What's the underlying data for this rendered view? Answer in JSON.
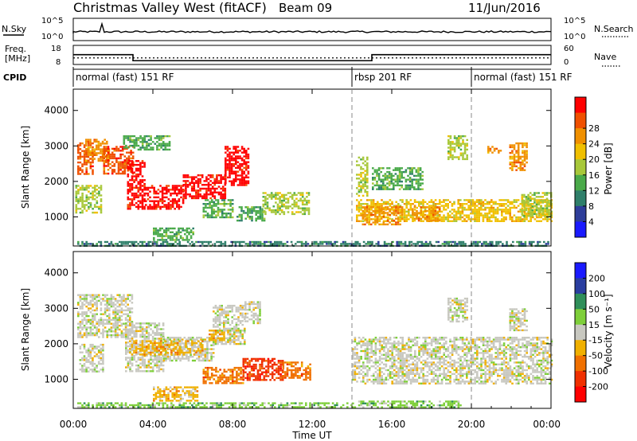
{
  "header": {
    "title": "Christmas Valley West (fitACF)",
    "beam": "Beam 09",
    "date": "11/Jun/2016"
  },
  "strips": {
    "nsky": {
      "label": "N.Sky",
      "right_label": "N.Search",
      "tick_top": "10^5",
      "tick_bottom": "10^0",
      "right_tick_top": "10^5",
      "right_tick_bottom": "10^0"
    },
    "freq": {
      "label_line1": "Freq.",
      "label_line2": "[MHz]",
      "right_label": "Nave",
      "left_ticks": [
        "18",
        "8"
      ],
      "right_ticks": [
        "60",
        "0"
      ]
    },
    "cpid": {
      "label": "CPID",
      "segments": [
        {
          "name": "normal (fast) 151 RF",
          "start_h": 0,
          "end_h": 14
        },
        {
          "name": "rbsp 201 RF",
          "start_h": 14,
          "end_h": 20
        },
        {
          "name": "normal (fast) 151 RF",
          "start_h": 20,
          "end_h": 24
        }
      ]
    }
  },
  "panels": {
    "power": {
      "ylabel": "Slant Range [km]",
      "colorbar_label": "Power [dB]",
      "colorbar_ticks": [
        "4",
        "8",
        "12",
        "16",
        "20",
        "24",
        "28"
      ],
      "colors": [
        "#1a1aff",
        "#2e3e9a",
        "#2f7f6a",
        "#4aaa4a",
        "#a8c83a",
        "#f0c000",
        "#f09000",
        "#f05000",
        "#ff0000"
      ]
    },
    "velocity": {
      "ylabel": "Slant Range [km]",
      "colorbar_label": "Velocity [m s⁻¹]",
      "colorbar_ticks": [
        "200",
        "100",
        "50",
        "15",
        "-15",
        "-50",
        "-100",
        "-200"
      ],
      "colors": [
        "#1a1aff",
        "#2a3ea0",
        "#2f8f5a",
        "#7ecf3a",
        "#c8c8c0",
        "#f0b000",
        "#f07000",
        "#f03000",
        "#ff0000"
      ]
    }
  },
  "xaxis": {
    "label": "Time UT",
    "ticks": [
      "00:00",
      "04:00",
      "08:00",
      "12:00",
      "16:00",
      "20:00",
      "00:00"
    ]
  },
  "chart_data": {
    "type": "heatmap",
    "x_range_hours": [
      0,
      24
    ],
    "y_range_km": [
      180,
      4600
    ],
    "yticks": [
      1000,
      2000,
      3000,
      4000
    ],
    "cpid_boundaries_h": [
      14,
      20
    ],
    "freq_mhz": [
      {
        "start_h": 0,
        "end_h": 3,
        "value": 14.5
      },
      {
        "start_h": 3,
        "end_h": 15,
        "value": 10.5
      },
      {
        "start_h": 15,
        "end_h": 24,
        "value": 14.5
      }
    ],
    "nave_level": 26,
    "power_regions": [
      {
        "t0": 0.2,
        "t1": 1.0,
        "r0": 2200,
        "r1": 3100,
        "level": 7
      },
      {
        "t0": 0.6,
        "t1": 1.8,
        "r0": 2600,
        "r1": 3200,
        "level": 6
      },
      {
        "t0": 1.5,
        "t1": 3.0,
        "r0": 2200,
        "r1": 3000,
        "level": 7
      },
      {
        "t0": 2.7,
        "t1": 3.6,
        "r0": 1200,
        "r1": 2600,
        "level": 8
      },
      {
        "t0": 3.6,
        "t1": 5.5,
        "r0": 1200,
        "r1": 1900,
        "level": 8
      },
      {
        "t0": 5.5,
        "t1": 7.6,
        "r0": 1500,
        "r1": 2200,
        "level": 8
      },
      {
        "t0": 7.6,
        "t1": 8.8,
        "r0": 1900,
        "r1": 3000,
        "level": 8
      },
      {
        "t0": 0.1,
        "t1": 1.4,
        "r0": 1100,
        "r1": 1900,
        "level": 4
      },
      {
        "t0": 2.5,
        "t1": 4.8,
        "r0": 2900,
        "r1": 3300,
        "level": 3
      },
      {
        "t0": 6.5,
        "t1": 8.0,
        "r0": 1000,
        "r1": 1500,
        "level": 3
      },
      {
        "t0": 8.2,
        "t1": 9.6,
        "r0": 900,
        "r1": 1300,
        "level": 3
      },
      {
        "t0": 9.5,
        "t1": 11.8,
        "r0": 1100,
        "r1": 1700,
        "level": 4
      },
      {
        "t0": 4.0,
        "t1": 6.0,
        "r0": 350,
        "r1": 700,
        "level": 3
      },
      {
        "t0": 0.2,
        "t1": 24.0,
        "r0": 200,
        "r1": 320,
        "level": 2
      },
      {
        "t0": 14.2,
        "t1": 14.8,
        "r0": 1600,
        "r1": 2700,
        "level": 4
      },
      {
        "t0": 14.2,
        "t1": 24.0,
        "r0": 900,
        "r1": 1500,
        "level": 5
      },
      {
        "t0": 14.5,
        "t1": 16.5,
        "r0": 800,
        "r1": 1300,
        "level": 6
      },
      {
        "t0": 17.0,
        "t1": 18.4,
        "r0": 900,
        "r1": 1300,
        "level": 6
      },
      {
        "t0": 15.0,
        "t1": 17.5,
        "r0": 1800,
        "r1": 2400,
        "level": 3
      },
      {
        "t0": 18.8,
        "t1": 19.8,
        "r0": 2600,
        "r1": 3300,
        "level": 4
      },
      {
        "t0": 20.8,
        "t1": 21.5,
        "r0": 2800,
        "r1": 3000,
        "level": 6
      },
      {
        "t0": 21.9,
        "t1": 22.8,
        "r0": 2300,
        "r1": 3100,
        "level": 6
      },
      {
        "t0": 22.5,
        "t1": 24.0,
        "r0": 1000,
        "r1": 1700,
        "level": 4
      }
    ],
    "velocity_regions": [
      {
        "t0": 0.2,
        "t1": 3.0,
        "r0": 2200,
        "r1": 3400,
        "level": 4
      },
      {
        "t0": 0.3,
        "t1": 1.5,
        "r0": 1200,
        "r1": 2000,
        "level": 4
      },
      {
        "t0": 2.6,
        "t1": 4.5,
        "r0": 1200,
        "r1": 2600,
        "level": 4
      },
      {
        "t0": 4.5,
        "t1": 7.0,
        "r0": 1500,
        "r1": 2200,
        "level": 4
      },
      {
        "t0": 7.0,
        "t1": 8.6,
        "r0": 2000,
        "r1": 3100,
        "level": 4
      },
      {
        "t0": 8.6,
        "t1": 9.4,
        "r0": 2600,
        "r1": 3200,
        "level": 4
      },
      {
        "t0": 2.8,
        "t1": 6.5,
        "r0": 1700,
        "r1": 2100,
        "level": 5
      },
      {
        "t0": 6.8,
        "t1": 7.6,
        "r0": 2100,
        "r1": 2400,
        "level": 5
      },
      {
        "t0": 6.5,
        "t1": 8.5,
        "r0": 900,
        "r1": 1350,
        "level": 6
      },
      {
        "t0": 8.5,
        "t1": 10.5,
        "r0": 1000,
        "r1": 1600,
        "level": 7
      },
      {
        "t0": 10.5,
        "t1": 11.9,
        "r0": 1000,
        "r1": 1500,
        "level": 6
      },
      {
        "t0": 4.0,
        "t1": 6.2,
        "r0": 400,
        "r1": 800,
        "level": 5
      },
      {
        "t0": 0.2,
        "t1": 14.0,
        "r0": 190,
        "r1": 350,
        "level": 3
      },
      {
        "t0": 14.0,
        "t1": 19.5,
        "r0": 190,
        "r1": 400,
        "level": 3
      },
      {
        "t0": 14.0,
        "t1": 24.0,
        "r0": 900,
        "r1": 2200,
        "level": 4
      },
      {
        "t0": 18.8,
        "t1": 19.8,
        "r0": 2600,
        "r1": 3300,
        "level": 4
      },
      {
        "t0": 21.9,
        "t1": 22.8,
        "r0": 2400,
        "r1": 3000,
        "level": 4
      }
    ]
  }
}
